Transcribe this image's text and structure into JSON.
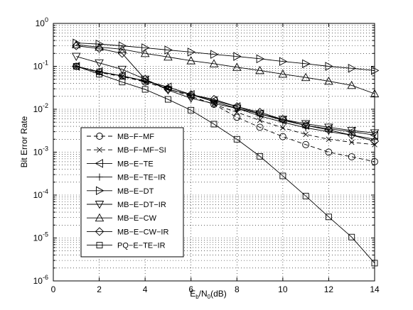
{
  "chart_data": {
    "type": "line",
    "xlabel": {
      "main": "E",
      "sub1": "b",
      "mid": "/N",
      "sub2": "0",
      "tail": "(dB)"
    },
    "ylabel": "Bit Error Rate",
    "xlim": [
      0,
      14
    ],
    "ylim": [
      1e-06,
      1
    ],
    "yscale": "log",
    "grid": true,
    "legend_position": "bottom-left",
    "x_ticks": [
      "0",
      "2",
      "4",
      "6",
      "8",
      "10",
      "12",
      "14"
    ],
    "y_ticks": [
      {
        "base": "10",
        "exp": "0"
      },
      {
        "base": "10",
        "exp": "-1"
      },
      {
        "base": "10",
        "exp": "-2"
      },
      {
        "base": "10",
        "exp": "-3"
      },
      {
        "base": "10",
        "exp": "-4"
      },
      {
        "base": "10",
        "exp": "-5"
      },
      {
        "base": "10",
        "exp": "-6"
      }
    ],
    "x": [
      1,
      2,
      3,
      4,
      5,
      6,
      7,
      8,
      9,
      10,
      11,
      12,
      13,
      14
    ],
    "series": [
      {
        "name": "MB−F−MF",
        "marker": "circle",
        "dash": true,
        "values": [
          0.1,
          0.075,
          0.06,
          0.043,
          0.03,
          0.02,
          0.013,
          0.0065,
          0.0038,
          0.0023,
          0.0015,
          0.001,
          0.00078,
          0.0006
        ]
      },
      {
        "name": "MB−F−MF−SI",
        "marker": "x",
        "dash": true,
        "values": [
          0.1,
          0.072,
          0.058,
          0.043,
          0.03,
          0.02,
          0.013,
          0.0085,
          0.0055,
          0.0037,
          0.0026,
          0.002,
          0.0017,
          0.0015
        ]
      },
      {
        "name": "MB−E−TE",
        "marker": "triangle-left",
        "dash": false,
        "values": [
          0.1,
          0.075,
          0.06,
          0.046,
          0.033,
          0.022,
          0.016,
          0.0115,
          0.0078,
          0.0055,
          0.0042,
          0.0035,
          0.003,
          0.0025
        ]
      },
      {
        "name": "MB−E−TE−IR",
        "marker": "plus",
        "dash": false,
        "values": [
          0.1,
          0.074,
          0.06,
          0.045,
          0.033,
          0.022,
          0.015,
          0.0105,
          0.007,
          0.005,
          0.0037,
          0.003,
          0.0025,
          0.002
        ]
      },
      {
        "name": "MB−E−DT",
        "marker": "triangle-right",
        "dash": false,
        "values": [
          0.35,
          0.33,
          0.3,
          0.27,
          0.24,
          0.215,
          0.19,
          0.17,
          0.15,
          0.13,
          0.115,
          0.1,
          0.09,
          0.08
        ]
      },
      {
        "name": "MB−E−DT−IR",
        "marker": "triangle-down",
        "dash": false,
        "values": [
          0.17,
          0.12,
          0.085,
          0.05,
          0.028,
          0.018,
          0.0135,
          0.0105,
          0.0078,
          0.0058,
          0.0046,
          0.0038,
          0.0032,
          0.0028
        ]
      },
      {
        "name": "MB−E−CW",
        "marker": "triangle-up",
        "dash": false,
        "values": [
          0.32,
          0.28,
          0.25,
          0.2,
          0.165,
          0.135,
          0.115,
          0.095,
          0.08,
          0.066,
          0.055,
          0.045,
          0.036,
          0.023
        ]
      },
      {
        "name": "MB−E−CW−IR",
        "marker": "diamond",
        "dash": false,
        "values": [
          0.3,
          0.26,
          0.2,
          0.05,
          0.029,
          0.022,
          0.017,
          0.0115,
          0.0085,
          0.0058,
          0.0042,
          0.0033,
          0.0025,
          0.0018
        ]
      },
      {
        "name": "PQ−E−TE−IR",
        "marker": "square",
        "dash": false,
        "values": [
          0.1,
          0.066,
          0.043,
          0.029,
          0.017,
          0.0095,
          0.0045,
          0.002,
          0.0008,
          0.00028,
          9.5e-05,
          3.1e-05,
          1.05e-05,
          2.6e-06
        ]
      }
    ]
  }
}
